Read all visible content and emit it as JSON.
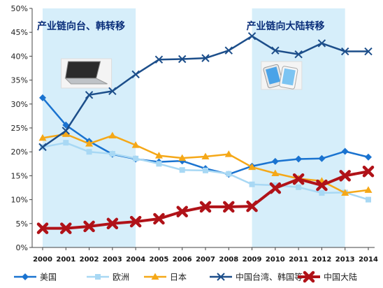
{
  "chart_data": {
    "type": "line",
    "title": "",
    "xlabel": "",
    "ylabel": "",
    "x": [
      "2000",
      "2001",
      "2002",
      "2003",
      "2004",
      "2005",
      "2006",
      "2007",
      "2008",
      "2009",
      "2010",
      "2011",
      "2012",
      "2013",
      "2014"
    ],
    "ylim": [
      0,
      50
    ],
    "yticks": [
      0,
      5,
      10,
      15,
      20,
      25,
      30,
      35,
      40,
      45,
      50
    ],
    "ytick_suffix": "%",
    "grid": false,
    "legend_position": "bottom",
    "shaded_periods": [
      {
        "label": "产业链向台、韩转移",
        "start": "2000",
        "end": "2004",
        "color": "#d6eefa"
      },
      {
        "label": "产业链向大陆转移",
        "start": "2009",
        "end": "2013",
        "color": "#d6eefa"
      }
    ],
    "images": [
      {
        "icon": "laptop-image",
        "near": "2002"
      },
      {
        "icon": "smartphone-image",
        "near": "2010"
      }
    ],
    "series": [
      {
        "name": "美国",
        "color": "#1a73d0",
        "marker": "diamond",
        "values": [
          31.3,
          25.6,
          22.2,
          19.5,
          18.5,
          17.9,
          18.1,
          16.5,
          15.3,
          17.0,
          18.0,
          18.5,
          18.6,
          20.1,
          18.9
        ]
      },
      {
        "name": "欧洲",
        "color": "#a8d8f4",
        "marker": "square",
        "values": [
          21.0,
          21.9,
          20.0,
          19.6,
          18.6,
          17.5,
          16.2,
          16.1,
          15.4,
          13.2,
          13.0,
          12.6,
          11.4,
          11.5,
          10.0
        ]
      },
      {
        "name": "日本",
        "color": "#f5a818",
        "marker": "triangle",
        "values": [
          22.9,
          23.7,
          21.7,
          23.4,
          21.4,
          19.2,
          18.7,
          19.0,
          19.5,
          16.8,
          15.5,
          14.4,
          13.9,
          11.4,
          12.0
        ]
      },
      {
        "name": "中国台湾、韩国等",
        "color": "#1c4e8a",
        "marker": "x",
        "values": [
          21.0,
          24.4,
          31.9,
          32.7,
          36.2,
          39.3,
          39.4,
          39.6,
          41.2,
          44.2,
          41.2,
          40.4,
          42.7,
          41.0,
          41.0
        ]
      },
      {
        "name": "中国大陆",
        "color": "#b01218",
        "marker": "cross",
        "values": [
          4.0,
          4.0,
          4.4,
          5.0,
          5.4,
          6.0,
          7.5,
          8.5,
          8.5,
          8.6,
          12.4,
          14.3,
          13.0,
          15.0,
          15.9
        ]
      }
    ]
  }
}
